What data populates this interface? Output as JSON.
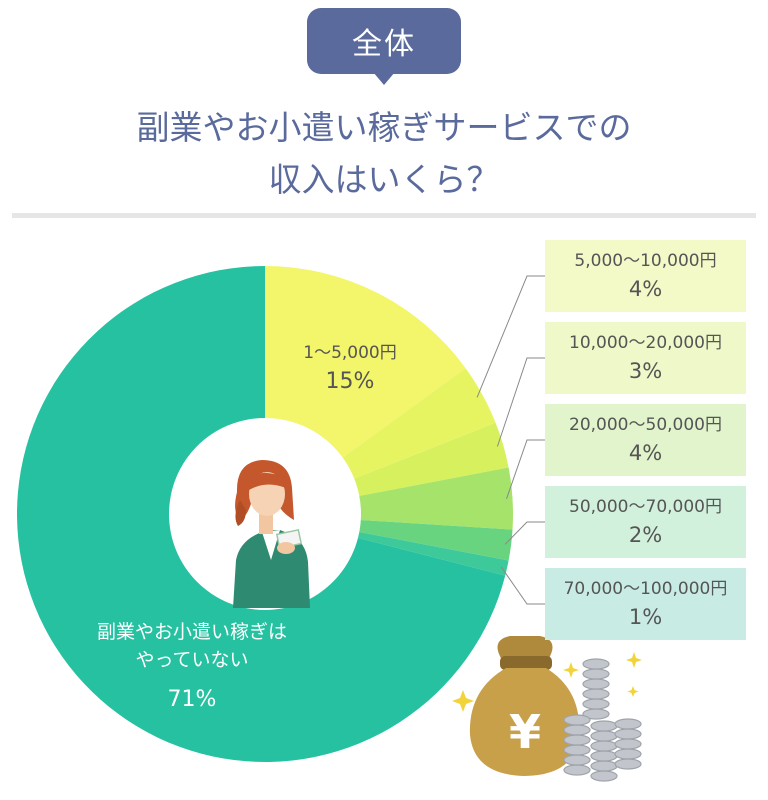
{
  "header": {
    "badge": "全体",
    "title_line1": "副業やお小遣い稼ぎサービスでの",
    "title_line2": "収入はいくら？"
  },
  "chart_data": {
    "type": "pie",
    "style": "donut",
    "slices": [
      {
        "label": "1〜5,000円",
        "value": 15,
        "display": "15%",
        "color": "#f3f56a"
      },
      {
        "label": "5,000〜10,000円",
        "value": 4,
        "display": "4%",
        "color": "#e7f462"
      },
      {
        "label": "10,000〜20,000円",
        "value": 3,
        "display": "3%",
        "color": "#d7f05e"
      },
      {
        "label": "20,000〜50,000円",
        "value": 4,
        "display": "4%",
        "color": "#a6e36a"
      },
      {
        "label": "50,000〜70,000円",
        "value": 2,
        "display": "2%",
        "color": "#69d480"
      },
      {
        "label": "70,000〜100,000円",
        "value": 1,
        "display": "1%",
        "color": "#3dc99a"
      },
      {
        "label_line1": "副業やお小遣い稼ぎは",
        "label_line2": "やっていない",
        "value": 71,
        "display": "71%",
        "color": "#26c1a0"
      }
    ],
    "legend_box_colors": [
      "#f4f9c8",
      "#eef8c8",
      "#e2f4cc",
      "#d2f1dc",
      "#c8ece3"
    ]
  }
}
